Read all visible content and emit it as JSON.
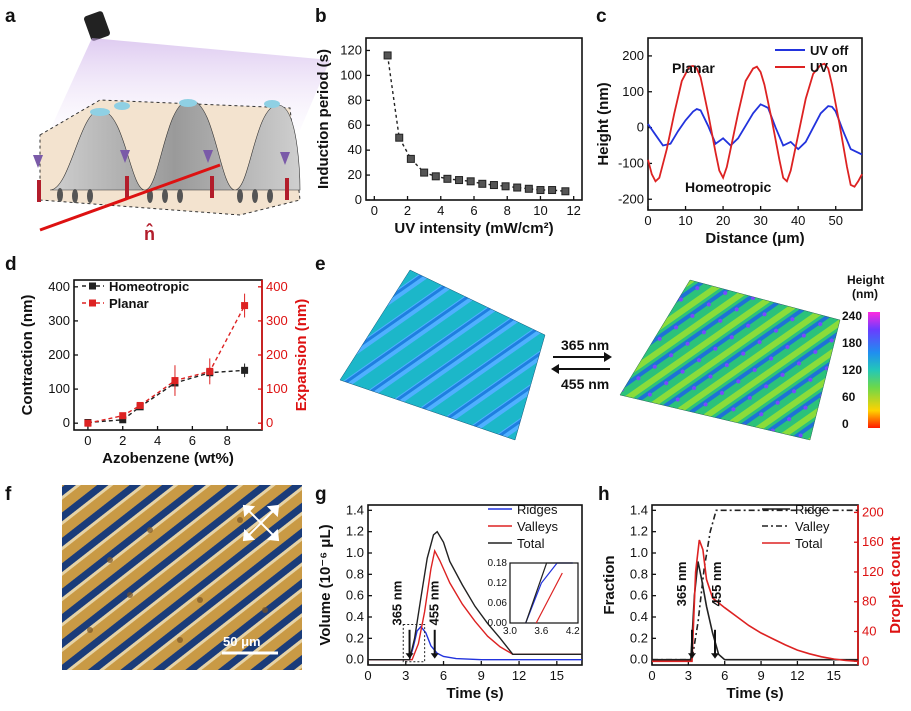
{
  "figure": {
    "panels": [
      "a",
      "b",
      "c",
      "d",
      "e",
      "f",
      "g",
      "h"
    ]
  },
  "panel_a": {
    "director_label": "n̂"
  },
  "panel_e": {
    "arrow_top_label": "365 nm",
    "arrow_bottom_label": "455 nm",
    "colorbar_title_1": "Height",
    "colorbar_title_2": "(nm)",
    "colorbar_ticks": [
      "240",
      "180",
      "120",
      "60",
      "0"
    ]
  },
  "panel_f": {
    "scale_label": "50 μm"
  },
  "colors": {
    "black": "#222222",
    "red": "#dd2222",
    "blue": "#2233dd"
  },
  "chart_data": [
    {
      "id": "b",
      "type": "scatter",
      "xlabel": "UV intensity (mW/cm²)",
      "ylabel": "Induction period (s)",
      "xlim": [
        -0.5,
        12.5
      ],
      "ylim": [
        0,
        130
      ],
      "xticks": [
        0,
        2,
        4,
        6,
        8,
        10,
        12
      ],
      "yticks": [
        0,
        20,
        40,
        60,
        80,
        100,
        120
      ],
      "x": [
        0.8,
        1.5,
        2.2,
        3.0,
        3.7,
        4.4,
        5.1,
        5.8,
        6.5,
        7.2,
        7.9,
        8.6,
        9.3,
        10.0,
        10.7,
        11.5
      ],
      "y": [
        116,
        50,
        33,
        22,
        19,
        17,
        16,
        15,
        13,
        12,
        11,
        10,
        9,
        8,
        8,
        7
      ]
    },
    {
      "id": "c",
      "type": "line",
      "xlabel": "Distance (μm)",
      "ylabel": "Height (nm)",
      "xlim": [
        0,
        57
      ],
      "ylim": [
        -230,
        250
      ],
      "xticks": [
        0,
        10,
        20,
        30,
        40,
        50
      ],
      "yticks": [
        -200,
        -100,
        0,
        100,
        200
      ],
      "annotations": [
        "Planar",
        "Homeotropic"
      ],
      "legend": "top-right",
      "series": [
        {
          "name": "UV off",
          "color": "#2233dd",
          "x": [
            0,
            2,
            4,
            6,
            8,
            10,
            12,
            13,
            14,
            16,
            18,
            20,
            22,
            24,
            26,
            28,
            30,
            31,
            32,
            34,
            36,
            38,
            40,
            42,
            44,
            46,
            48,
            49,
            50,
            52,
            54,
            56,
            57
          ],
          "y": [
            10,
            -20,
            -50,
            -45,
            -10,
            20,
            45,
            52,
            48,
            5,
            -45,
            -30,
            -50,
            -30,
            5,
            40,
            65,
            60,
            55,
            0,
            -50,
            -40,
            -60,
            -40,
            0,
            40,
            60,
            58,
            45,
            -10,
            -60,
            -70,
            -75
          ]
        },
        {
          "name": "UV on",
          "color": "#dd2222",
          "x": [
            0,
            1,
            2,
            3,
            5,
            7,
            9,
            11,
            12,
            13,
            14,
            16,
            18,
            19,
            20,
            21,
            22,
            24,
            26,
            28,
            29,
            30,
            31,
            33,
            35,
            36,
            37,
            38,
            40,
            42,
            44,
            46,
            47,
            48,
            49,
            51,
            53,
            54,
            55,
            56,
            57
          ],
          "y": [
            -90,
            -130,
            -150,
            -140,
            -60,
            40,
            130,
            170,
            172,
            165,
            140,
            40,
            -70,
            -120,
            -140,
            -110,
            -60,
            40,
            130,
            165,
            170,
            155,
            120,
            20,
            -90,
            -140,
            -150,
            -120,
            -20,
            80,
            150,
            175,
            178,
            165,
            120,
            10,
            -110,
            -160,
            -165,
            -150,
            -130
          ]
        }
      ]
    },
    {
      "id": "d",
      "type": "scatter",
      "xlabel": "Azobenzene (wt%)",
      "ylabel": "Contraction (nm)",
      "y2label": "Expansion (nm)",
      "xlim": [
        -0.8,
        10
      ],
      "ylim": [
        -20,
        420
      ],
      "xticks": [
        0,
        2,
        4,
        6,
        8
      ],
      "yticks": [
        0,
        100,
        200,
        300,
        400
      ],
      "legend": "top-left",
      "series": [
        {
          "name": "Homeotropic",
          "color": "#222222",
          "x": [
            0,
            2,
            3,
            5,
            7,
            9
          ],
          "y": [
            2,
            10,
            48,
            118,
            148,
            155
          ],
          "err": [
            3,
            4,
            8,
            18,
            15,
            20
          ]
        },
        {
          "name": "Planar",
          "color": "#dd2222",
          "x": [
            0,
            2,
            3,
            5,
            7,
            9
          ],
          "y": [
            0,
            22,
            52,
            125,
            152,
            345
          ],
          "err": [
            3,
            6,
            10,
            45,
            38,
            35
          ]
        }
      ]
    },
    {
      "id": "g",
      "type": "line",
      "xlabel": "Time (s)",
      "ylabel": "Volume (10⁻⁶ μL)",
      "xlim": [
        0,
        17
      ],
      "ylim": [
        -0.05,
        1.45
      ],
      "xticks": [
        0,
        3,
        6,
        9,
        12,
        15
      ],
      "yticks": [
        0.0,
        0.2,
        0.4,
        0.6,
        0.8,
        1.0,
        1.2,
        1.4
      ],
      "annotations": [
        "365 nm",
        "455 nm"
      ],
      "legend": "top-right",
      "series": [
        {
          "name": "Ridges",
          "color": "#2233dd",
          "x": [
            0,
            3.3,
            3.6,
            3.9,
            4.2,
            4.6,
            5.0,
            5.5,
            6.0,
            7.0,
            9,
            17
          ],
          "y": [
            0,
            0,
            0.12,
            0.27,
            0.31,
            0.25,
            0.13,
            0.06,
            0.03,
            0.01,
            0,
            0
          ]
        },
        {
          "name": "Valleys",
          "color": "#dd2222",
          "x": [
            0,
            3.5,
            4.0,
            4.5,
            5.0,
            5.3,
            5.7,
            6.5,
            7.5,
            8.5,
            9.5,
            10.5,
            11.5,
            17
          ],
          "y": [
            0,
            0,
            0.15,
            0.45,
            0.85,
            1.02,
            0.93,
            0.72,
            0.52,
            0.36,
            0.22,
            0.12,
            0.05,
            0.05
          ]
        },
        {
          "name": "Total",
          "color": "#222222",
          "x": [
            0,
            3.3,
            3.7,
            4.2,
            4.7,
            5.2,
            5.5,
            6.0,
            6.5,
            7.5,
            8.5,
            9.5,
            10.5,
            11.5,
            17
          ],
          "y": [
            0,
            0,
            0.2,
            0.58,
            0.95,
            1.17,
            1.2,
            1.1,
            0.92,
            0.7,
            0.5,
            0.34,
            0.2,
            0.05,
            0.05
          ]
        }
      ],
      "inset": {
        "xlim": [
          3.0,
          4.3
        ],
        "ylim": [
          0,
          0.18
        ],
        "xticks": [
          3.0,
          3.6,
          4.2
        ],
        "yticks": [
          0.0,
          0.06,
          0.12,
          0.18
        ]
      }
    },
    {
      "id": "h",
      "type": "line",
      "xlabel": "Time (s)",
      "ylabel": "Fraction",
      "y2label": "Droplet count",
      "xlim": [
        0,
        17
      ],
      "ylim": [
        -0.05,
        1.45
      ],
      "y2lim": [
        -5,
        210
      ],
      "xticks": [
        0,
        3,
        6,
        9,
        12,
        15
      ],
      "yticks": [
        0.0,
        0.2,
        0.4,
        0.6,
        0.8,
        1.0,
        1.2,
        1.4
      ],
      "y2ticks": [
        0,
        40,
        80,
        120,
        160,
        200
      ],
      "annotations": [
        "365 nm",
        "455 nm"
      ],
      "legend": "top-right",
      "series": [
        {
          "name": "Ridge",
          "color": "#222222",
          "axis": "left",
          "x": [
            0,
            3.2,
            3.5,
            3.8,
            4.1,
            4.5,
            5.0,
            5.5,
            6.0,
            17
          ],
          "y": [
            0,
            0,
            0.6,
            0.92,
            0.75,
            0.5,
            0.25,
            0.05,
            0,
            0
          ]
        },
        {
          "name": "Valley",
          "color": "#222222",
          "dash": "6,3,2,3",
          "axis": "left",
          "x": [
            0,
            3.3,
            3.8,
            4.3,
            4.8,
            5.3,
            5.8,
            17
          ],
          "y": [
            0,
            0,
            0.35,
            0.85,
            1.2,
            1.4,
            1.4,
            1.4
          ]
        },
        {
          "name": "Total",
          "color": "#dd2222",
          "axis": "right",
          "x": [
            0,
            3.3,
            3.6,
            3.9,
            4.2,
            4.5,
            5.0,
            6,
            7,
            8,
            9,
            10,
            11,
            12,
            13,
            14,
            15,
            16,
            17
          ],
          "y": [
            0,
            0,
            120,
            163,
            150,
            110,
            85,
            72,
            60,
            48,
            38,
            30,
            22,
            15,
            10,
            6,
            3,
            1,
            0
          ]
        }
      ]
    }
  ]
}
